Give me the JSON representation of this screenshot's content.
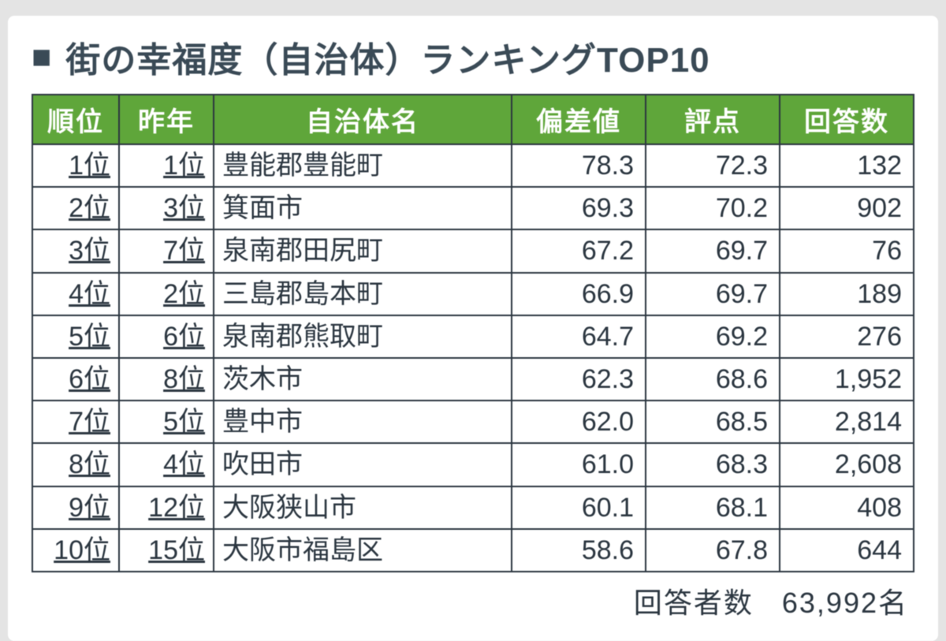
{
  "title": "街の幸福度（自治体）ランキングTOP10",
  "header_bg_color": "#5fa63a",
  "header_text_color": "#ffffff",
  "border_color": "#2b3640",
  "text_color": "#2b3640",
  "title_color": "#3a4a56",
  "background_page": "#e4e4e4",
  "background_card": "#ffffff",
  "columns": [
    {
      "key": "rank",
      "label": "順位"
    },
    {
      "key": "lastyear",
      "label": "昨年"
    },
    {
      "key": "name",
      "label": "自治体名"
    },
    {
      "key": "deviation",
      "label": "偏差値"
    },
    {
      "key": "score",
      "label": "評点"
    },
    {
      "key": "responses",
      "label": "回答数"
    }
  ],
  "rows": [
    {
      "rank": "1位",
      "lastyear": "1位",
      "name": "豊能郡豊能町",
      "deviation": "78.3",
      "score": "72.3",
      "responses": "132"
    },
    {
      "rank": "2位",
      "lastyear": "3位",
      "name": "箕面市",
      "deviation": "69.3",
      "score": "70.2",
      "responses": "902"
    },
    {
      "rank": "3位",
      "lastyear": "7位",
      "name": "泉南郡田尻町",
      "deviation": "67.2",
      "score": "69.7",
      "responses": "76"
    },
    {
      "rank": "4位",
      "lastyear": "2位",
      "name": "三島郡島本町",
      "deviation": "66.9",
      "score": "69.7",
      "responses": "189"
    },
    {
      "rank": "5位",
      "lastyear": "6位",
      "name": "泉南郡熊取町",
      "deviation": "64.7",
      "score": "69.2",
      "responses": "276"
    },
    {
      "rank": "6位",
      "lastyear": "8位",
      "name": "茨木市",
      "deviation": "62.3",
      "score": "68.6",
      "responses": "1,952"
    },
    {
      "rank": "7位",
      "lastyear": "5位",
      "name": "豊中市",
      "deviation": "62.0",
      "score": "68.5",
      "responses": "2,814"
    },
    {
      "rank": "8位",
      "lastyear": "4位",
      "name": "吹田市",
      "deviation": "61.0",
      "score": "68.3",
      "responses": "2,608"
    },
    {
      "rank": "9位",
      "lastyear": "12位",
      "name": "大阪狭山市",
      "deviation": "60.1",
      "score": "68.1",
      "responses": "408"
    },
    {
      "rank": "10位",
      "lastyear": "15位",
      "name": "大阪市福島区",
      "deviation": "58.6",
      "score": "67.8",
      "responses": "644"
    }
  ],
  "footer_label": "回答者数",
  "footer_value": "63,992名"
}
